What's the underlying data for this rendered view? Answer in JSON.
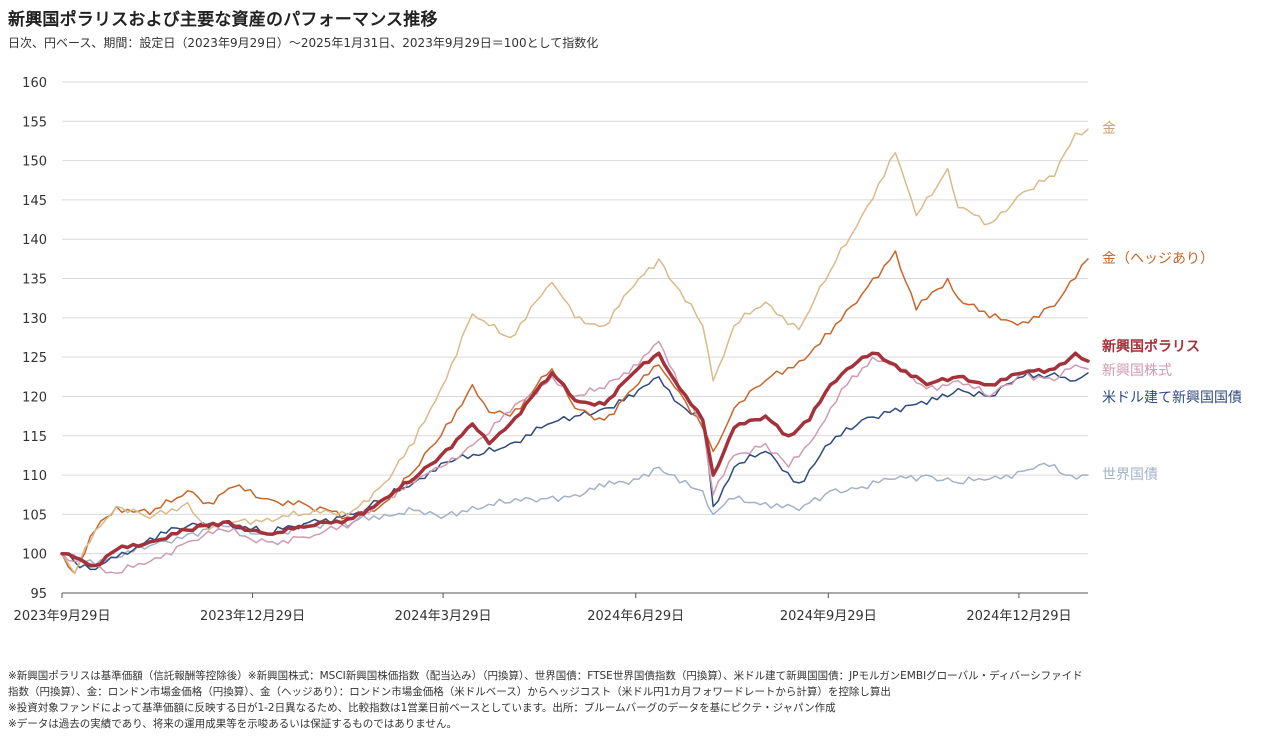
{
  "title": "新興国ポラリスおよび主要な資産のパフォーマンス推移",
  "subtitle": "日次、円ベース、期間：設定日（2023年9月29日）～2025年1月31日、2023年9月29日＝100として指数化",
  "notes": [
    "※新興国ポラリスは基準価額（信託報酬等控除後）※新興国株式：MSCI新興国株価指数（配当込み）（円換算）、世界国債：FTSE世界国債指数（円換算）、米ドル建て新興国国債：JPモルガンEMBIグローバル・ディバーシファイド",
    "指数（円換算）、金：ロンドン市場金価格（円換算）、金（ヘッジあり）：ロンドン市場金価格（米ドルベース）からヘッジコスト（米ドル円1カ月フォワードレートから計算）を控除し算出",
    "※投資対象ファンドによって基準価額に反映する日が1-2日異なるため、比較指数は1営業日前ベースとしています。出所：ブルームバーグのデータを基にピクテ・ジャパン作成",
    "※データは過去の実績であり、将来の運用成果等を示唆あるいは保証するものではありません。"
  ],
  "chart_data": {
    "type": "line",
    "title": "新興国ポラリスおよび主要な資産のパフォーマンス推移",
    "xlabel": "",
    "ylabel": "",
    "x_range": [
      "2023-09-29",
      "2025-01-31"
    ],
    "x_ticks": [
      {
        "date": "2023-09-29",
        "label": "2023年9月29日"
      },
      {
        "date": "2023-12-29",
        "label": "2023年12月29日"
      },
      {
        "date": "2024-03-29",
        "label": "2024年3月29日"
      },
      {
        "date": "2024-06-29",
        "label": "2024年6月29日"
      },
      {
        "date": "2024-09-29",
        "label": "2024年9月29日"
      },
      {
        "date": "2024-12-29",
        "label": "2024年12月29日"
      }
    ],
    "ylim": [
      95,
      160
    ],
    "yticks": [
      95,
      100,
      105,
      110,
      115,
      120,
      125,
      130,
      135,
      140,
      145,
      150,
      155,
      160
    ],
    "grid": true,
    "legend": "right (labels next to line ends)",
    "series": [
      {
        "name": "世界国債",
        "color": "#a3b2c8",
        "width": 1.5,
        "points": [
          [
            "2023-09-29",
            100
          ],
          [
            "2023-10-10",
            99
          ],
          [
            "2023-10-25",
            99.5
          ],
          [
            "2023-11-10",
            101
          ],
          [
            "2023-11-28",
            102.5
          ],
          [
            "2023-12-15",
            103.5
          ],
          [
            "2024-01-05",
            102.5
          ],
          [
            "2024-01-25",
            103.5
          ],
          [
            "2024-02-15",
            104
          ],
          [
            "2024-03-01",
            105
          ],
          [
            "2024-03-15",
            105.5
          ],
          [
            "2024-03-28",
            104.5
          ],
          [
            "2024-04-12",
            106
          ],
          [
            "2024-04-30",
            106.5
          ],
          [
            "2024-05-15",
            107
          ],
          [
            "2024-05-31",
            107.5
          ],
          [
            "2024-06-14",
            108.5
          ],
          [
            "2024-06-28",
            109.5
          ],
          [
            "2024-07-10",
            111
          ],
          [
            "2024-07-20",
            109
          ],
          [
            "2024-07-31",
            108
          ],
          [
            "2024-08-05",
            105
          ],
          [
            "2024-08-15",
            107
          ],
          [
            "2024-08-30",
            106.5
          ],
          [
            "2024-09-15",
            105.5
          ],
          [
            "2024-09-30",
            108
          ],
          [
            "2024-10-15",
            108.5
          ],
          [
            "2024-10-31",
            109.5
          ],
          [
            "2024-11-15",
            110
          ],
          [
            "2024-11-30",
            109
          ],
          [
            "2024-12-15",
            109.5
          ],
          [
            "2024-12-31",
            110.5
          ],
          [
            "2025-01-10",
            111.5
          ],
          [
            "2025-01-20",
            110
          ],
          [
            "2025-01-31",
            110
          ]
        ]
      },
      {
        "name": "米ドル建て新興国国債",
        "color": "#2f4a7f",
        "width": 1.5,
        "points": [
          [
            "2023-09-29",
            100
          ],
          [
            "2023-10-05",
            99
          ],
          [
            "2023-10-15",
            98
          ],
          [
            "2023-10-25",
            99.5
          ],
          [
            "2023-11-10",
            102
          ],
          [
            "2023-11-28",
            103.5
          ],
          [
            "2023-12-15",
            104
          ],
          [
            "2024-01-05",
            102.5
          ],
          [
            "2024-01-25",
            104
          ],
          [
            "2024-02-15",
            105
          ],
          [
            "2024-03-01",
            107
          ],
          [
            "2024-03-15",
            109
          ],
          [
            "2024-03-28",
            111.5
          ],
          [
            "2024-04-15",
            112.5
          ],
          [
            "2024-04-30",
            114
          ],
          [
            "2024-05-15",
            116
          ],
          [
            "2024-05-31",
            117.5
          ],
          [
            "2024-06-14",
            118.5
          ],
          [
            "2024-06-28",
            120
          ],
          [
            "2024-07-10",
            122.5
          ],
          [
            "2024-07-20",
            119
          ],
          [
            "2024-07-31",
            117
          ],
          [
            "2024-08-05",
            106
          ],
          [
            "2024-08-15",
            111
          ],
          [
            "2024-08-30",
            113
          ],
          [
            "2024-09-15",
            109
          ],
          [
            "2024-09-30",
            114
          ],
          [
            "2024-10-15",
            117
          ],
          [
            "2024-10-31",
            118.5
          ],
          [
            "2024-11-15",
            119
          ],
          [
            "2024-11-30",
            121
          ],
          [
            "2024-12-15",
            120
          ],
          [
            "2024-12-31",
            122.5
          ],
          [
            "2025-01-15",
            123
          ],
          [
            "2025-01-25",
            122
          ],
          [
            "2025-01-31",
            123
          ]
        ]
      },
      {
        "name": "金（ヘッジあり）",
        "color": "#c8662a",
        "width": 1.5,
        "points": [
          [
            "2023-09-29",
            100
          ],
          [
            "2023-10-05",
            97.5
          ],
          [
            "2023-10-15",
            103
          ],
          [
            "2023-10-25",
            106
          ],
          [
            "2023-11-10",
            105
          ],
          [
            "2023-11-28",
            108
          ],
          [
            "2023-12-08",
            106.5
          ],
          [
            "2023-12-20",
            108.5
          ],
          [
            "2024-01-05",
            107
          ],
          [
            "2024-01-25",
            106
          ],
          [
            "2024-02-15",
            104.5
          ],
          [
            "2024-03-01",
            106.5
          ],
          [
            "2024-03-15",
            110.5
          ],
          [
            "2024-03-28",
            115
          ],
          [
            "2024-04-12",
            121.5
          ],
          [
            "2024-04-20",
            118
          ],
          [
            "2024-04-30",
            117.5
          ],
          [
            "2024-05-20",
            123.5
          ],
          [
            "2024-05-31",
            118.5
          ],
          [
            "2024-06-14",
            117
          ],
          [
            "2024-06-28",
            121
          ],
          [
            "2024-07-10",
            124
          ],
          [
            "2024-07-20",
            120.5
          ],
          [
            "2024-07-31",
            116
          ],
          [
            "2024-08-05",
            113
          ],
          [
            "2024-08-15",
            118.5
          ],
          [
            "2024-08-30",
            122
          ],
          [
            "2024-09-15",
            124.5
          ],
          [
            "2024-09-30",
            128
          ],
          [
            "2024-10-15",
            133
          ],
          [
            "2024-10-31",
            138.5
          ],
          [
            "2024-11-10",
            131
          ],
          [
            "2024-11-25",
            135
          ],
          [
            "2024-11-30",
            132.5
          ],
          [
            "2024-12-15",
            130
          ],
          [
            "2024-12-31",
            129.5
          ],
          [
            "2025-01-15",
            131.5
          ],
          [
            "2025-01-25",
            135
          ],
          [
            "2025-01-31",
            137.5
          ]
        ]
      },
      {
        "name": "金",
        "color": "#d9bb8a",
        "width": 1.5,
        "points": [
          [
            "2023-09-29",
            100
          ],
          [
            "2023-10-05",
            97.5
          ],
          [
            "2023-10-15",
            103
          ],
          [
            "2023-10-25",
            106
          ],
          [
            "2023-11-10",
            104.5
          ],
          [
            "2023-11-28",
            106.5
          ],
          [
            "2023-12-08",
            103
          ],
          [
            "2023-12-20",
            104
          ],
          [
            "2024-01-05",
            104.5
          ],
          [
            "2024-01-25",
            105
          ],
          [
            "2024-02-15",
            105.5
          ],
          [
            "2024-03-01",
            109
          ],
          [
            "2024-03-15",
            114
          ],
          [
            "2024-03-28",
            121
          ],
          [
            "2024-04-12",
            130.5
          ],
          [
            "2024-04-20",
            129
          ],
          [
            "2024-04-30",
            127.5
          ],
          [
            "2024-05-20",
            134.5
          ],
          [
            "2024-05-31",
            130
          ],
          [
            "2024-06-14",
            129
          ],
          [
            "2024-06-28",
            134
          ],
          [
            "2024-07-10",
            137.5
          ],
          [
            "2024-07-20",
            133.5
          ],
          [
            "2024-07-31",
            129
          ],
          [
            "2024-08-05",
            122
          ],
          [
            "2024-08-15",
            129
          ],
          [
            "2024-08-30",
            132
          ],
          [
            "2024-09-15",
            128.5
          ],
          [
            "2024-09-30",
            136
          ],
          [
            "2024-10-15",
            143
          ],
          [
            "2024-10-31",
            151
          ],
          [
            "2024-11-10",
            143
          ],
          [
            "2024-11-25",
            149
          ],
          [
            "2024-11-30",
            144
          ],
          [
            "2024-12-15",
            142
          ],
          [
            "2024-12-31",
            146
          ],
          [
            "2025-01-15",
            148
          ],
          [
            "2025-01-25",
            153.5
          ],
          [
            "2025-01-31",
            154
          ]
        ]
      },
      {
        "name": "新興国株式",
        "color": "#cf9bb3",
        "width": 1.5,
        "points": [
          [
            "2023-09-29",
            100
          ],
          [
            "2023-10-05",
            99
          ],
          [
            "2023-10-15",
            98.5
          ],
          [
            "2023-10-25",
            97.5
          ],
          [
            "2023-11-10",
            99
          ],
          [
            "2023-11-28",
            101.5
          ],
          [
            "2023-12-15",
            103
          ],
          [
            "2024-01-05",
            101.5
          ],
          [
            "2024-01-25",
            102
          ],
          [
            "2024-02-15",
            104
          ],
          [
            "2024-03-01",
            107
          ],
          [
            "2024-03-15",
            109
          ],
          [
            "2024-03-28",
            111
          ],
          [
            "2024-04-15",
            114.5
          ],
          [
            "2024-04-30",
            118
          ],
          [
            "2024-05-20",
            122.5
          ],
          [
            "2024-05-31",
            120
          ],
          [
            "2024-06-14",
            121
          ],
          [
            "2024-06-28",
            124
          ],
          [
            "2024-07-10",
            127
          ],
          [
            "2024-07-20",
            121
          ],
          [
            "2024-07-31",
            117
          ],
          [
            "2024-08-05",
            107.5
          ],
          [
            "2024-08-15",
            112.5
          ],
          [
            "2024-08-30",
            114
          ],
          [
            "2024-09-10",
            111
          ],
          [
            "2024-09-20",
            114
          ],
          [
            "2024-09-30",
            118.5
          ],
          [
            "2024-10-08",
            121.5
          ],
          [
            "2024-10-20",
            125
          ],
          [
            "2024-10-31",
            124
          ],
          [
            "2024-11-15",
            121
          ],
          [
            "2024-11-30",
            122
          ],
          [
            "2024-12-15",
            120
          ],
          [
            "2024-12-31",
            123
          ],
          [
            "2025-01-15",
            122
          ],
          [
            "2025-01-25",
            124
          ],
          [
            "2025-01-31",
            123.5
          ]
        ]
      },
      {
        "name": "新興国ポラリス",
        "color": "#a3323b",
        "width": 3.5,
        "points": [
          [
            "2023-09-29",
            100
          ],
          [
            "2023-10-05",
            99.5
          ],
          [
            "2023-10-15",
            98.5
          ],
          [
            "2023-10-25",
            100.5
          ],
          [
            "2023-11-10",
            101.5
          ],
          [
            "2023-11-28",
            103
          ],
          [
            "2023-12-15",
            104
          ],
          [
            "2024-01-05",
            102.5
          ],
          [
            "2024-01-25",
            103.5
          ],
          [
            "2024-02-15",
            104.5
          ],
          [
            "2024-03-01",
            107
          ],
          [
            "2024-03-15",
            109.5
          ],
          [
            "2024-03-28",
            112.5
          ],
          [
            "2024-04-12",
            116.5
          ],
          [
            "2024-04-20",
            114
          ],
          [
            "2024-04-30",
            116.5
          ],
          [
            "2024-05-20",
            123
          ],
          [
            "2024-05-31",
            119.5
          ],
          [
            "2024-06-14",
            119
          ],
          [
            "2024-06-28",
            123
          ],
          [
            "2024-07-10",
            125.5
          ],
          [
            "2024-07-20",
            121
          ],
          [
            "2024-07-31",
            117
          ],
          [
            "2024-08-05",
            110
          ],
          [
            "2024-08-15",
            116
          ],
          [
            "2024-08-30",
            117.5
          ],
          [
            "2024-09-10",
            115
          ],
          [
            "2024-09-20",
            117
          ],
          [
            "2024-09-30",
            121.5
          ],
          [
            "2024-10-08",
            123.5
          ],
          [
            "2024-10-20",
            125.5
          ],
          [
            "2024-10-31",
            124
          ],
          [
            "2024-11-15",
            121.5
          ],
          [
            "2024-11-30",
            122.5
          ],
          [
            "2024-12-15",
            121.5
          ],
          [
            "2024-12-31",
            123
          ],
          [
            "2025-01-15",
            123.5
          ],
          [
            "2025-01-25",
            125.5
          ],
          [
            "2025-01-31",
            124.5
          ]
        ]
      }
    ],
    "labels": [
      {
        "text": "金",
        "color": "#c8a472",
        "bold": false,
        "at_y": 154
      },
      {
        "text": "金（ヘッジあり）",
        "color": "#c8662a",
        "bold": false,
        "at_y": 137.5
      },
      {
        "text": "新興国ポラリス",
        "color": "#a3323b",
        "bold": true,
        "at_y": 124.5
      },
      {
        "text": "新興国株式",
        "color": "#cf9bb3",
        "bold": false,
        "at_y": 123.5
      },
      {
        "text": "米ドル建て新興国国債",
        "color": "#2f4a7f",
        "bold": false,
        "at_y": 123
      },
      {
        "text": "世界国債",
        "color": "#a3b2c8",
        "bold": false,
        "at_y": 110
      }
    ]
  }
}
